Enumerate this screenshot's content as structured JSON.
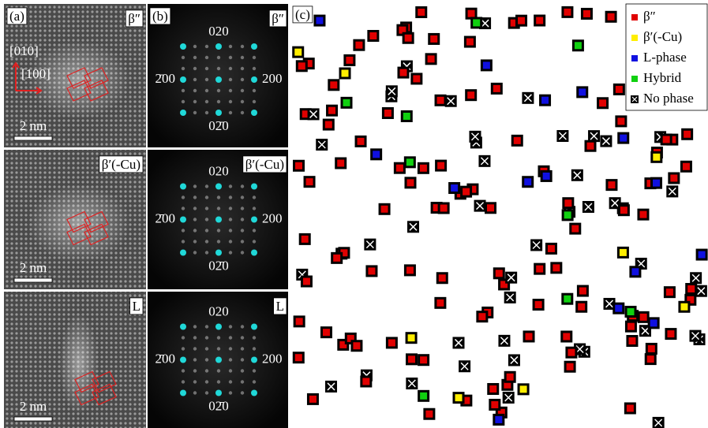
{
  "panel_a": {
    "label": "(a)",
    "axes": [
      "[010]",
      "[100]"
    ],
    "rows": [
      {
        "phase": "β″",
        "scale": "2 nm"
      },
      {
        "phase": "β′(-Cu)",
        "scale": "2 nm"
      },
      {
        "phase": "L",
        "scale": "2 nm"
      }
    ]
  },
  "panel_b": {
    "label": "(b)",
    "rows": [
      {
        "phase": "β″",
        "spots": [
          "020",
          "2̄00",
          "200",
          "02̄0"
        ]
      },
      {
        "phase": "β′(-Cu)",
        "spots": [
          "020",
          "2̄00",
          "200",
          "02̄0"
        ]
      },
      {
        "phase": "L",
        "spots": [
          "020",
          "2̄00",
          "200",
          "02̄0"
        ]
      }
    ]
  },
  "panel_c": {
    "label": "(c)",
    "legend": [
      {
        "name": "β″",
        "color": "#e00000"
      },
      {
        "name": "β′(-Cu)",
        "color": "#ffee00"
      },
      {
        "name": "L-phase",
        "color": "#1010e0"
      },
      {
        "name": "Hybrid",
        "color": "#10d010"
      },
      {
        "name": "No phase",
        "color": "#000000"
      }
    ]
  }
}
